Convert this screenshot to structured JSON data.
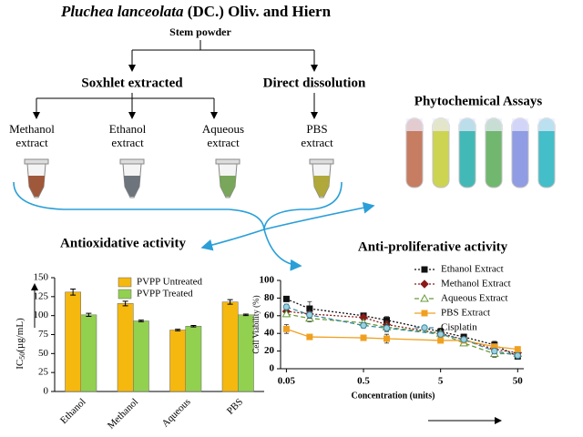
{
  "title": {
    "species": "Pluchea lanceolata",
    "authority": "(DC.) Oliv. and Hiern"
  },
  "source": "Stem powder",
  "methods": [
    "Soxhlet extracted",
    "Direct dissolution"
  ],
  "extracts": [
    {
      "lines": [
        "Methanol",
        "extract"
      ],
      "color": "#a0583a"
    },
    {
      "lines": [
        "Ethanol",
        "extract"
      ],
      "color": "#6e747c"
    },
    {
      "lines": [
        "Aqueous",
        "extract"
      ],
      "color": "#78a65a"
    },
    {
      "lines": [
        "PBS",
        "extract"
      ],
      "color": "#b0a83a"
    }
  ],
  "assays": {
    "title": "Phytochemical Assays",
    "colors": [
      "#c07050",
      "#c8d040",
      "#2fb2b0",
      "#62b060",
      "#8492e0",
      "#30b8c4"
    ]
  },
  "activities": [
    "Antioxidative activity",
    "Anti-proliferative activity"
  ],
  "chart_data": [
    {
      "type": "bar",
      "categories": [
        "Ethanol",
        "Methanol",
        "Aqueous",
        "PBS"
      ],
      "series": [
        {
          "name": "PVPP Untreated",
          "color": "#f5b80f",
          "values": [
            131,
            116,
            81,
            118
          ],
          "errors": [
            4,
            3,
            1,
            3
          ]
        },
        {
          "name": "PVPP Treated",
          "color": "#92d050",
          "values": [
            101,
            93,
            86,
            101
          ],
          "errors": [
            2,
            1,
            1,
            1
          ]
        }
      ],
      "y_label": {
        "main": "IC",
        "sub": "50",
        "unit": "(µg/mL)"
      },
      "ylim": [
        0,
        150
      ],
      "yticks": [
        0,
        25,
        50,
        75,
        100,
        125,
        150
      ]
    },
    {
      "type": "line",
      "x": [
        0.05,
        0.1,
        0.5,
        1,
        5,
        10,
        25,
        50
      ],
      "xlim": [
        0.042,
        60
      ],
      "xticks": [
        0.05,
        0.5,
        5,
        50
      ],
      "log_x": true,
      "ylim": [
        0,
        100
      ],
      "yticks": [
        0,
        20,
        40,
        60,
        80,
        100
      ],
      "x_label": "Concentration (units)",
      "y_label": "Cell Viability (%)",
      "series": [
        {
          "name": "Ethanol Extract",
          "color": "#111111",
          "dash": "dotted",
          "marker": "square",
          "values": [
            79,
            68,
            60,
            55,
            42,
            36,
            27,
            14
          ],
          "errors": [
            3,
            8,
            3,
            4,
            4,
            3,
            4,
            3
          ]
        },
        {
          "name": "Methanol Extract",
          "color": "#8b1a1a",
          "dash": "dotted",
          "marker": "diamond",
          "values": [
            65,
            62,
            58,
            50,
            40,
            33,
            22,
            18
          ],
          "errors": [
            3,
            3,
            3,
            4,
            3,
            3,
            3,
            3
          ]
        },
        {
          "name": "Aqueous  Extract",
          "color": "#6a9a3a",
          "dash": "dashed",
          "marker": "triangle",
          "values": [
            62,
            57,
            52,
            47,
            40,
            29,
            17,
            17
          ],
          "errors": [
            3,
            4,
            3,
            4,
            3,
            3,
            4,
            3
          ]
        },
        {
          "name": "PBS  Extract",
          "color": "#f0a020",
          "dash": "solid",
          "marker": "square",
          "values": [
            45,
            36,
            35,
            34,
            32,
            32,
            25,
            22
          ],
          "errors": [
            5,
            2,
            3,
            5,
            2,
            2,
            3,
            2
          ]
        },
        {
          "name": "Cisplatin",
          "color": "#3a8aa0",
          "dash": "dashed",
          "marker": "circle",
          "values": [
            70,
            61,
            49,
            46,
            39,
            33,
            20,
            15
          ],
          "errors": [
            3,
            4,
            3,
            4,
            3,
            3,
            3,
            3
          ]
        }
      ]
    }
  ]
}
